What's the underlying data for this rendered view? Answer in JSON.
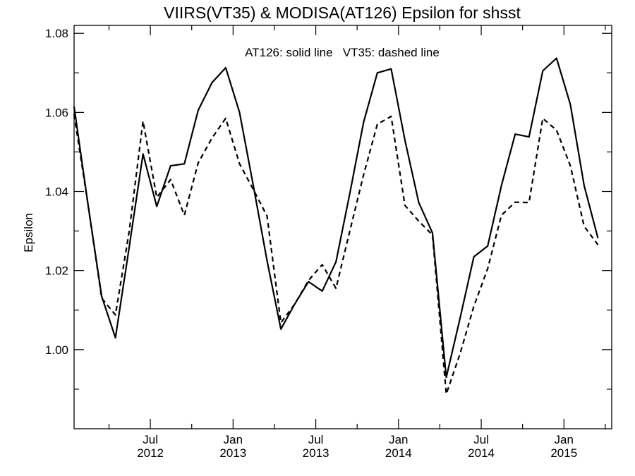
{
  "chart_data": {
    "type": "line",
    "title": "VIIRS(VT35) & MODISA(AT126)  Epsilon for shsst",
    "xlabel": "",
    "ylabel": "Epsilon",
    "annotation": "AT126: solid line   VT35: dashed line",
    "ylim": [
      0.98,
      1.082
    ],
    "xlim": [
      "2012-01-15",
      "2015-04-15"
    ],
    "grid": false,
    "y_ticks": [
      {
        "value": 1.0,
        "label": "1.00"
      },
      {
        "value": 1.02,
        "label": "1.02"
      },
      {
        "value": 1.04,
        "label": "1.04"
      },
      {
        "value": 1.06,
        "label": "1.06"
      },
      {
        "value": 1.08,
        "label": "1.08"
      }
    ],
    "y_minor_ticks": [
      0.99,
      1.01,
      1.03,
      1.05,
      1.07
    ],
    "x_ticks": [
      {
        "date": "2012-07",
        "month": "Jul",
        "year": "2012"
      },
      {
        "date": "2013-01",
        "month": "Jan",
        "year": "2013"
      },
      {
        "date": "2013-07",
        "month": "Jul",
        "year": "2013"
      },
      {
        "date": "2014-01",
        "month": "Jan",
        "year": "2014"
      },
      {
        "date": "2014-07",
        "month": "Jul",
        "year": "2014"
      },
      {
        "date": "2015-01",
        "month": "Jan",
        "year": "2015"
      }
    ],
    "x_minor_ticks": [
      "2012-04",
      "2012-10",
      "2013-04",
      "2013-10",
      "2014-04",
      "2014-10",
      "2015-04"
    ],
    "x": [
      "2012-01",
      "2012-02",
      "2012-03",
      "2012-04",
      "2012-05",
      "2012-06",
      "2012-07",
      "2012-08",
      "2012-09",
      "2012-10",
      "2012-11",
      "2012-12",
      "2013-01",
      "2013-02",
      "2013-03",
      "2013-04",
      "2013-05",
      "2013-06",
      "2013-07",
      "2013-08",
      "2013-09",
      "2013-10",
      "2013-11",
      "2013-12",
      "2014-01",
      "2014-02",
      "2014-03",
      "2014-04",
      "2014-05",
      "2014-06",
      "2014-07",
      "2014-08",
      "2014-09",
      "2014-10",
      "2014-11",
      "2014-12",
      "2015-01",
      "2015-02",
      "2015-03",
      "2015-04"
    ],
    "series": [
      {
        "name": "AT126",
        "style": "solid",
        "values": [
          1.0615,
          1.037,
          1.0135,
          1.003,
          1.026,
          1.0495,
          1.0362,
          1.0465,
          1.047,
          1.0605,
          1.0675,
          1.0713,
          1.06,
          1.0415,
          1.0225,
          1.0052,
          1.0115,
          1.0172,
          1.0148,
          1.0222,
          1.0395,
          1.0575,
          1.07,
          1.071,
          1.053,
          1.0372,
          1.0295,
          0.993,
          1.008,
          1.0235,
          1.0262,
          1.0415,
          1.0545,
          1.0538,
          1.0705,
          1.0737,
          1.062,
          1.0415,
          1.0282,
          null
        ]
      },
      {
        "name": "VT35",
        "style": "dashed",
        "values": [
          1.0595,
          1.037,
          1.013,
          1.0088,
          1.03,
          1.0578,
          1.0385,
          1.043,
          1.034,
          1.0472,
          1.0535,
          1.0585,
          1.047,
          1.0405,
          1.0338,
          1.0068,
          1.0115,
          1.0175,
          1.0215,
          1.0155,
          1.03,
          1.0442,
          1.057,
          1.059,
          1.0365,
          1.0325,
          1.029,
          0.9888,
          0.999,
          1.011,
          1.0205,
          1.034,
          1.0373,
          1.0372,
          1.0585,
          1.0555,
          1.0465,
          1.0312,
          1.0265,
          null
        ]
      }
    ]
  }
}
